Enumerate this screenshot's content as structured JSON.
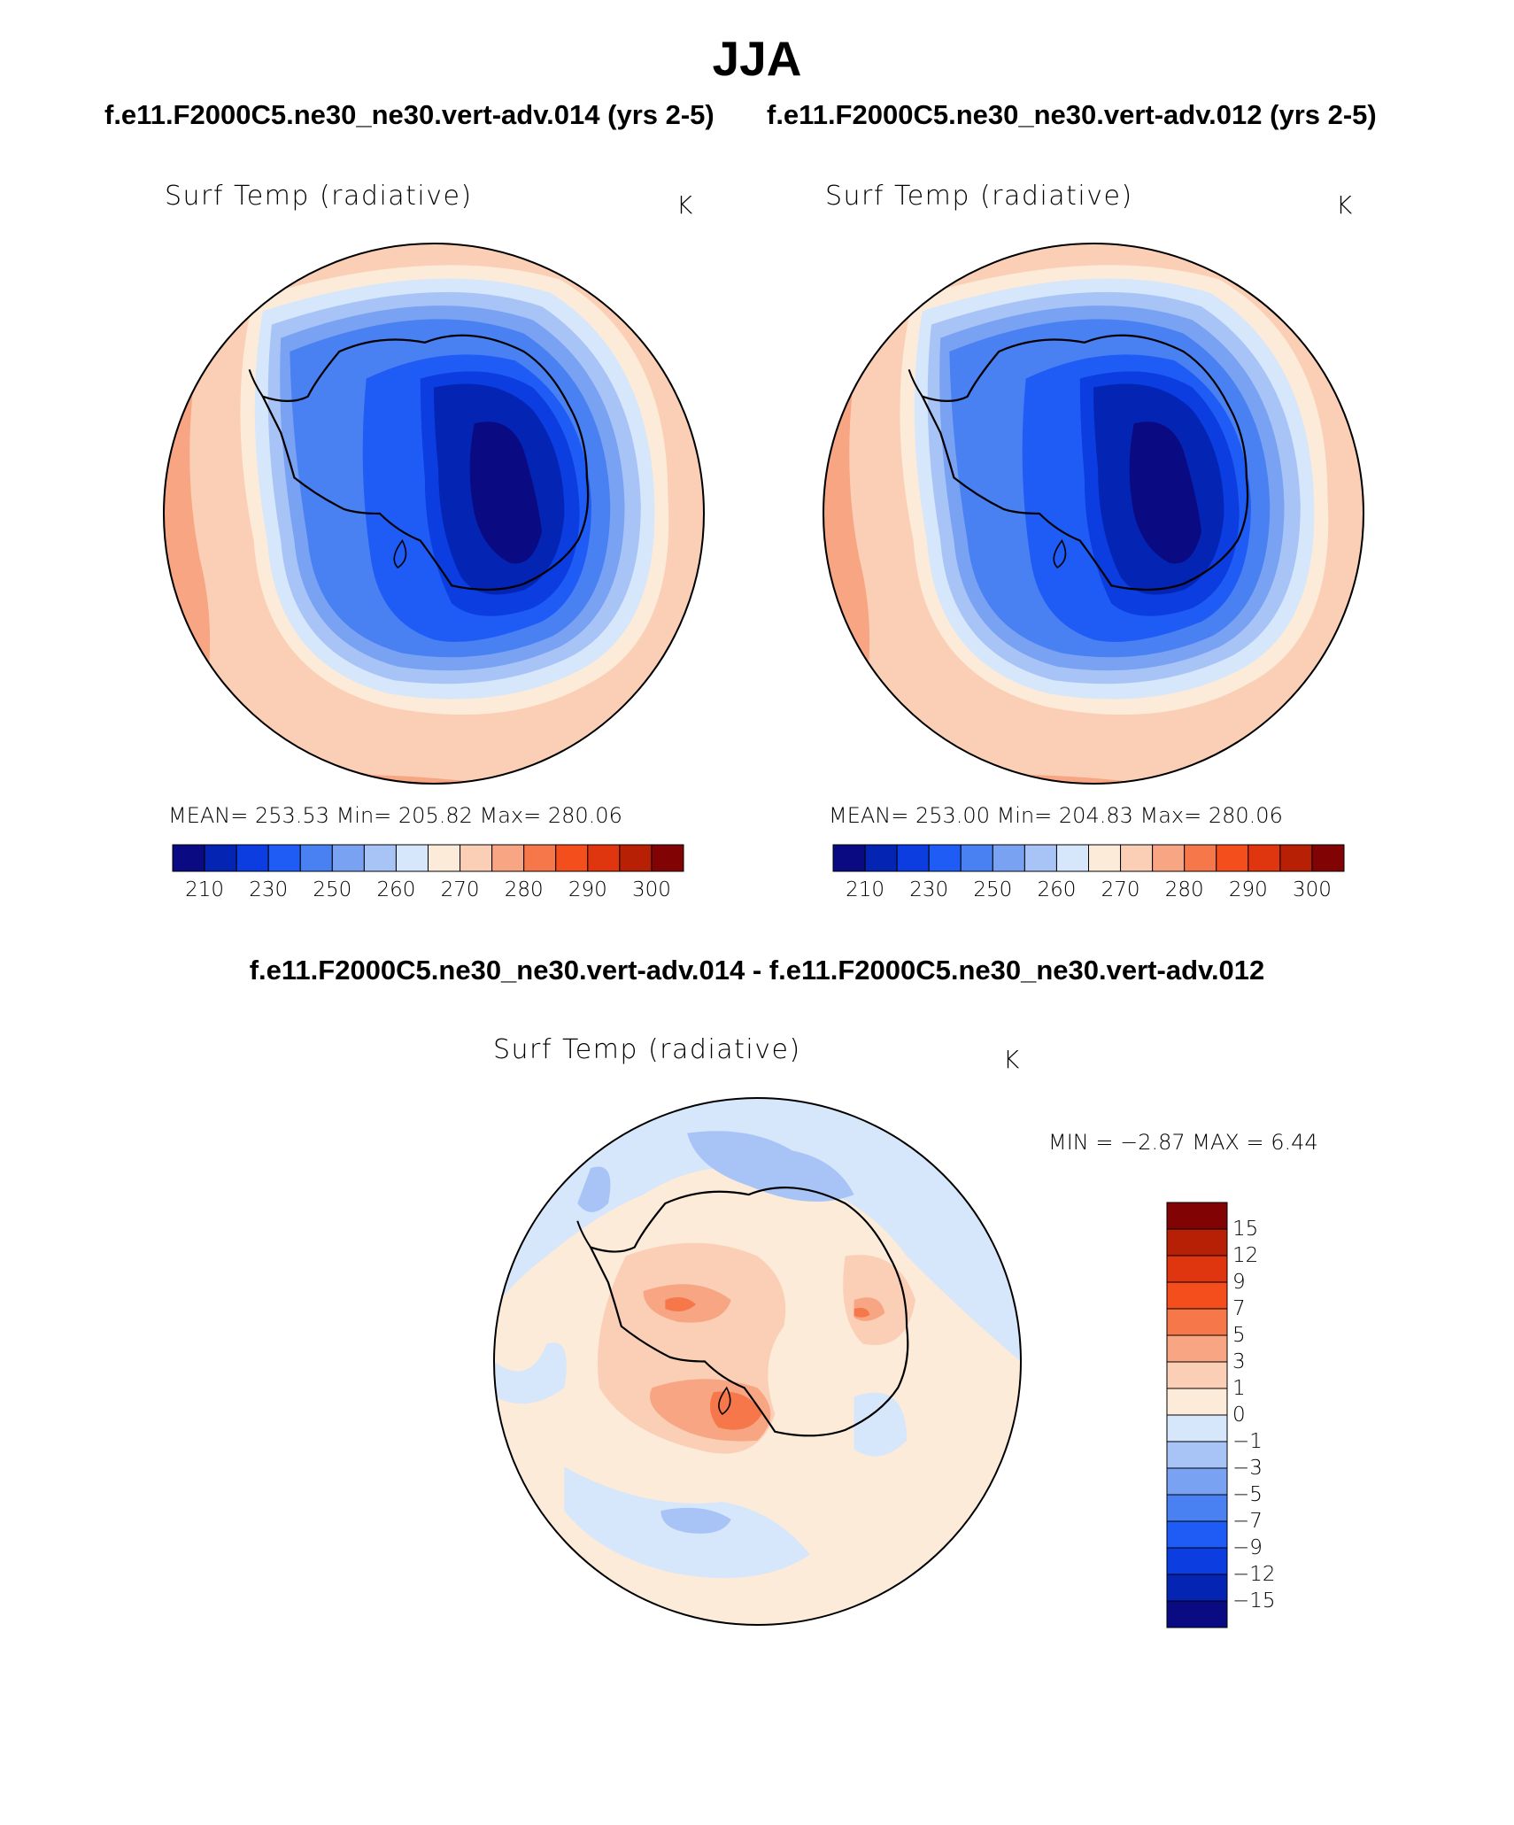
{
  "figure": {
    "season": "JJA",
    "case_left": "f.e11.F2000C5.ne30_ne30.vert-adv.014 (yrs 2-5)",
    "case_right": "f.e11.F2000C5.ne30_ne30.vert-adv.012 (yrs 2-5)",
    "diff_title": "f.e11.F2000C5.ne30_ne30.vert-adv.014 - f.e11.F2000C5.ne30_ne30.vert-adv.012"
  },
  "panels": [
    {
      "variable": "Surf Temp (radiative)",
      "units": "K",
      "stats": "MEAN= 253.53   Min= 205.82   Max= 280.06"
    },
    {
      "variable": "Surf Temp (radiative)",
      "units": "K",
      "stats": "MEAN= 253.00   Min= 204.83   Max= 280.06"
    }
  ],
  "abs_colorbar": {
    "colors": [
      "#0a0a82",
      "#0424b4",
      "#0b3de0",
      "#1f5cf5",
      "#4980f2",
      "#7aa2f3",
      "#a8c4f7",
      "#d6e6fb",
      "#fcebd9",
      "#fbcfb6",
      "#f7a582",
      "#f5774a",
      "#f34e1b",
      "#e0360f",
      "#b82006",
      "#820303"
    ],
    "labels": [
      "210",
      "230",
      "250",
      "260",
      "270",
      "280",
      "290",
      "300"
    ]
  },
  "diff_panel": {
    "variable": "Surf Temp (radiative)",
    "units": "K",
    "minmax": "MIN =   −2.87  MAX =     6.44"
  },
  "diff_colorbar": {
    "colors": [
      "#820303",
      "#b82006",
      "#e0360f",
      "#f34e1b",
      "#f5774a",
      "#f7a582",
      "#fbcfb6",
      "#fcebd9",
      "#d6e6fb",
      "#a8c4f7",
      "#7aa2f3",
      "#4980f2",
      "#1f5cf5",
      "#0b3de0",
      "#0424b4",
      "#0a0a82"
    ],
    "labels": [
      "15",
      "12",
      "9",
      "7",
      "5",
      "3",
      "1",
      "0",
      "−1",
      "−3",
      "−5",
      "−7",
      "−9",
      "−12",
      "−15"
    ]
  }
}
